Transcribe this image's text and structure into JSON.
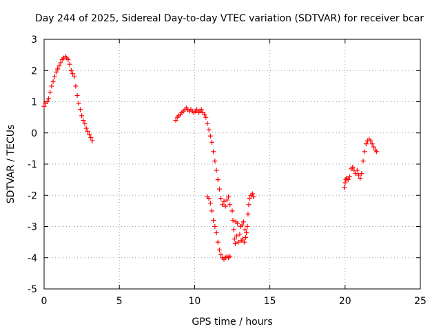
{
  "chart_data": {
    "type": "scatter",
    "title": "Day 244 of 2025, Sidereal Day-to-day VTEC variation (SDTVAR) for receiver bcar",
    "xlabel": "GPS time / hours",
    "ylabel": "SDTVAR / TECUs",
    "xlim": [
      0,
      25
    ],
    "ylim": [
      -5,
      3
    ],
    "xticks": [
      0,
      5,
      10,
      15,
      20,
      25
    ],
    "yticks": [
      -5,
      -4,
      -3,
      -2,
      -1,
      0,
      1,
      2,
      3
    ],
    "xtick_labels": [
      "0",
      "5",
      "10",
      "15",
      "20",
      "25"
    ],
    "ytick_labels": [
      "-5",
      "-4",
      "-3",
      "-2",
      "-1",
      "0",
      "1",
      "2",
      "3"
    ],
    "grid": true,
    "marker": "+",
    "color": "#ff0000",
    "series": [
      {
        "name": "segment-1",
        "points": [
          [
            0.0,
            0.85
          ],
          [
            0.1,
            0.95
          ],
          [
            0.2,
            1.0
          ],
          [
            0.3,
            1.1
          ],
          [
            0.4,
            1.3
          ],
          [
            0.5,
            1.5
          ],
          [
            0.6,
            1.65
          ],
          [
            0.7,
            1.8
          ],
          [
            0.8,
            1.95
          ],
          [
            0.9,
            2.05
          ],
          [
            1.0,
            2.15
          ],
          [
            1.1,
            2.25
          ],
          [
            1.2,
            2.35
          ],
          [
            1.3,
            2.4
          ],
          [
            1.4,
            2.45
          ],
          [
            1.5,
            2.4
          ],
          [
            1.6,
            2.35
          ],
          [
            1.7,
            2.2
          ],
          [
            1.8,
            2.0
          ],
          [
            1.9,
            1.9
          ],
          [
            2.0,
            1.8
          ],
          [
            2.1,
            1.5
          ],
          [
            2.2,
            1.2
          ],
          [
            2.3,
            0.95
          ],
          [
            2.4,
            0.75
          ],
          [
            2.5,
            0.55
          ],
          [
            2.6,
            0.4
          ],
          [
            2.7,
            0.3
          ],
          [
            2.8,
            0.15
          ],
          [
            2.9,
            0.05
          ],
          [
            3.0,
            -0.05
          ],
          [
            3.1,
            -0.15
          ],
          [
            3.2,
            -0.25
          ]
        ]
      },
      {
        "name": "segment-2",
        "points": [
          [
            8.75,
            0.4
          ],
          [
            8.85,
            0.5
          ],
          [
            8.95,
            0.55
          ],
          [
            9.05,
            0.6
          ],
          [
            9.15,
            0.65
          ],
          [
            9.25,
            0.7
          ],
          [
            9.35,
            0.75
          ],
          [
            9.45,
            0.8
          ],
          [
            9.55,
            0.75
          ],
          [
            9.65,
            0.7
          ],
          [
            9.75,
            0.75
          ],
          [
            9.85,
            0.7
          ],
          [
            9.95,
            0.65
          ],
          [
            10.05,
            0.7
          ],
          [
            10.15,
            0.75
          ],
          [
            10.25,
            0.65
          ],
          [
            10.35,
            0.7
          ],
          [
            10.45,
            0.75
          ],
          [
            10.55,
            0.65
          ],
          [
            10.65,
            0.6
          ],
          [
            10.75,
            0.5
          ],
          [
            10.85,
            0.3
          ],
          [
            10.95,
            0.1
          ],
          [
            11.05,
            -0.1
          ],
          [
            11.15,
            -0.3
          ],
          [
            11.25,
            -0.6
          ],
          [
            11.35,
            -0.9
          ],
          [
            11.45,
            -1.2
          ],
          [
            11.55,
            -1.5
          ],
          [
            11.65,
            -1.8
          ],
          [
            11.75,
            -2.1
          ],
          [
            11.85,
            -2.3
          ],
          [
            11.95,
            -2.2
          ],
          [
            12.05,
            -2.35
          ],
          [
            12.15,
            -2.15
          ],
          [
            12.25,
            -2.05
          ],
          [
            12.35,
            -2.3
          ]
        ]
      },
      {
        "name": "segment-3",
        "points": [
          [
            10.85,
            -2.05
          ],
          [
            10.95,
            -2.1
          ],
          [
            11.05,
            -2.25
          ],
          [
            11.15,
            -2.5
          ],
          [
            11.25,
            -2.8
          ],
          [
            11.35,
            -3.0
          ],
          [
            11.45,
            -3.2
          ],
          [
            11.55,
            -3.5
          ],
          [
            11.65,
            -3.75
          ],
          [
            11.75,
            -3.9
          ],
          [
            11.85,
            -4.0
          ],
          [
            11.95,
            -4.05
          ],
          [
            12.05,
            -4.0
          ],
          [
            12.15,
            -3.95
          ],
          [
            12.25,
            -4.0
          ],
          [
            12.35,
            -3.95
          ]
        ]
      },
      {
        "name": "segment-4",
        "points": [
          [
            12.5,
            -2.5
          ],
          [
            12.55,
            -2.8
          ],
          [
            12.6,
            -3.1
          ],
          [
            12.65,
            -3.4
          ],
          [
            12.7,
            -3.55
          ],
          [
            12.8,
            -3.3
          ],
          [
            12.9,
            -3.5
          ],
          [
            13.0,
            -3.25
          ],
          [
            13.1,
            -3.45
          ],
          [
            13.2,
            -3.4
          ],
          [
            13.3,
            -3.5
          ],
          [
            13.4,
            -3.35
          ],
          [
            13.45,
            -3.2
          ],
          [
            12.75,
            -2.85
          ],
          [
            12.85,
            -2.9
          ],
          [
            13.05,
            -3.0
          ],
          [
            13.15,
            -2.95
          ],
          [
            13.25,
            -2.85
          ],
          [
            13.35,
            -3.1
          ],
          [
            13.5,
            -3.0
          ],
          [
            13.55,
            -2.6
          ],
          [
            13.6,
            -2.3
          ],
          [
            13.65,
            -2.1
          ],
          [
            13.75,
            -2.0
          ],
          [
            13.85,
            -1.95
          ],
          [
            13.9,
            -2.05
          ]
        ]
      },
      {
        "name": "segment-5",
        "points": [
          [
            19.95,
            -1.75
          ],
          [
            20.0,
            -1.6
          ],
          [
            20.05,
            -1.5
          ],
          [
            20.1,
            -1.45
          ],
          [
            20.2,
            -1.5
          ],
          [
            20.3,
            -1.4
          ],
          [
            20.4,
            -1.15
          ],
          [
            20.5,
            -1.1
          ],
          [
            20.6,
            -1.2
          ],
          [
            20.7,
            -1.3
          ],
          [
            20.8,
            -1.2
          ],
          [
            20.9,
            -1.35
          ],
          [
            21.0,
            -1.45
          ],
          [
            21.1,
            -1.3
          ],
          [
            21.2,
            -0.9
          ],
          [
            21.3,
            -0.6
          ],
          [
            21.4,
            -0.35
          ],
          [
            21.5,
            -0.25
          ],
          [
            21.6,
            -0.2
          ],
          [
            21.7,
            -0.25
          ],
          [
            21.8,
            -0.35
          ],
          [
            21.9,
            -0.45
          ],
          [
            22.0,
            -0.55
          ],
          [
            22.1,
            -0.6
          ]
        ]
      }
    ]
  }
}
